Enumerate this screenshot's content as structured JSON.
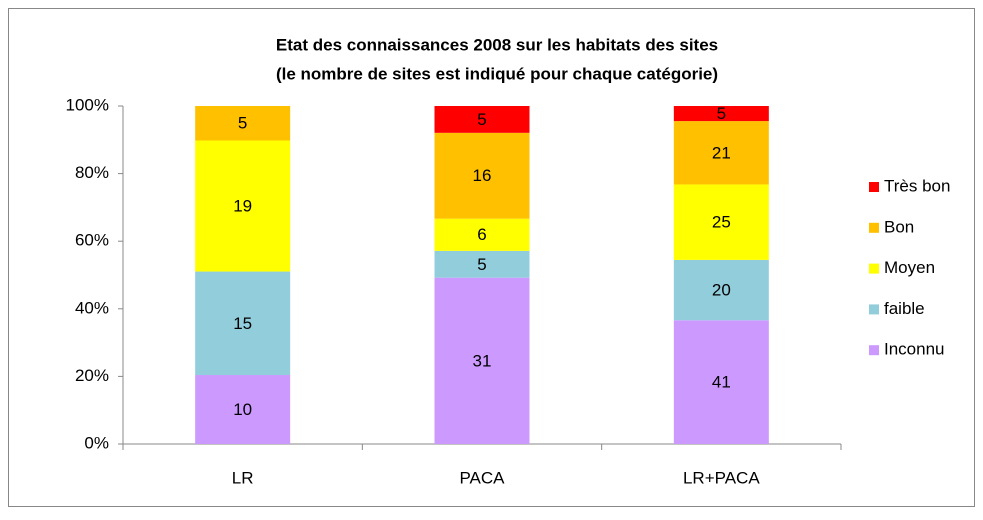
{
  "chart_data": {
    "type": "bar",
    "stacking": "percent",
    "title": [
      "Etat des connaissances 2008 sur les habitats des sites",
      "(le nombre de sites est indiqué pour chaque catégorie)"
    ],
    "categories": [
      "LR",
      "PACA",
      "LR+PACA"
    ],
    "series": [
      {
        "name": "Inconnu",
        "color": "#cc99ff",
        "values": [
          10,
          31,
          41
        ]
      },
      {
        "name": "faible",
        "color": "#92cddc",
        "values": [
          15,
          5,
          20
        ]
      },
      {
        "name": "Moyen",
        "color": "#ffff00",
        "values": [
          19,
          6,
          25
        ]
      },
      {
        "name": "Bon",
        "color": "#ffc000",
        "values": [
          5,
          16,
          21
        ]
      },
      {
        "name": "Très bon",
        "color": "#ff0000",
        "values": [
          null,
          5,
          5
        ]
      }
    ],
    "ylim": [
      0,
      100
    ],
    "yticks": [
      {
        "value": 0,
        "label": "0%"
      },
      {
        "value": 20,
        "label": "20%"
      },
      {
        "value": 40,
        "label": "40%"
      },
      {
        "value": 60,
        "label": "60%"
      },
      {
        "value": 80,
        "label": "80%"
      },
      {
        "value": 100,
        "label": "100%"
      }
    ],
    "legend": "right"
  }
}
